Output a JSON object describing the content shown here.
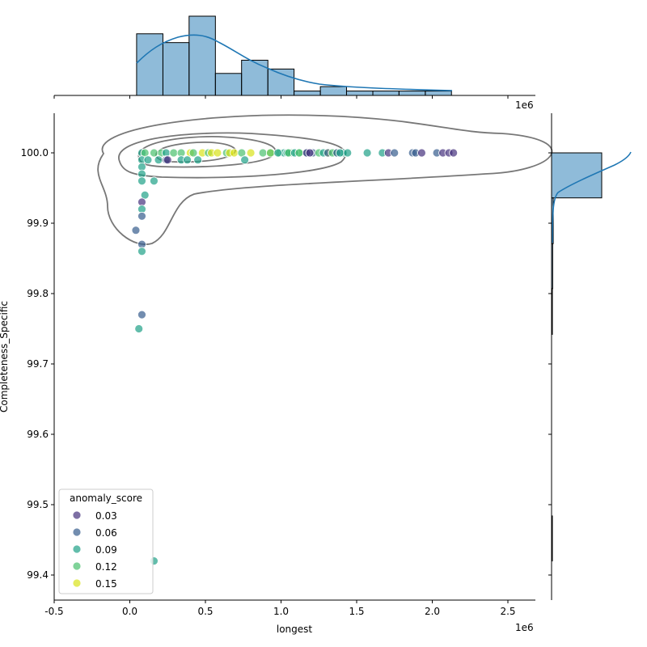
{
  "chart_data": {
    "type": "scatter",
    "subtype": "jointplot with kde contours and marginal histograms",
    "xlabel": "longest",
    "ylabel": "Completeness_Specific",
    "x_offset_label": "1e6",
    "xlim": [
      -0.5,
      2.68
    ],
    "ylim": [
      99.364,
      100.056
    ],
    "x_ticks": [
      "-0.5",
      "0.0",
      "0.5",
      "1.0",
      "1.5",
      "2.0",
      "2.5"
    ],
    "x_tick_values": [
      -0.5,
      0.0,
      0.5,
      1.0,
      1.5,
      2.0,
      2.5
    ],
    "y_ticks": [
      "99.4",
      "99.5",
      "99.6",
      "99.7",
      "99.8",
      "99.9",
      "100.0"
    ],
    "y_tick_values": [
      99.4,
      99.5,
      99.6,
      99.7,
      99.8,
      99.9,
      100.0
    ],
    "grid": false,
    "legend": {
      "title": "anomaly_score",
      "placement": "lower-left",
      "entries": [
        {
          "label": "0.03",
          "color": "#46327e"
        },
        {
          "label": "0.06",
          "color": "#365c8d"
        },
        {
          "label": "0.09",
          "color": "#1fa187"
        },
        {
          "label": "0.12",
          "color": "#4ac16d"
        },
        {
          "label": "0.15",
          "color": "#d8e219"
        }
      ]
    },
    "points": [
      [
        0.08,
        100.0,
        0.09
      ],
      [
        0.1,
        100.0,
        0.12
      ],
      [
        0.16,
        100.0,
        0.12
      ],
      [
        0.21,
        100.0,
        0.12
      ],
      [
        0.24,
        100.0,
        0.09
      ],
      [
        0.29,
        100.0,
        0.12
      ],
      [
        0.34,
        100.0,
        0.12
      ],
      [
        0.4,
        100.0,
        0.15
      ],
      [
        0.42,
        100.0,
        0.12
      ],
      [
        0.48,
        100.0,
        0.15
      ],
      [
        0.52,
        100.0,
        0.12
      ],
      [
        0.54,
        100.0,
        0.15
      ],
      [
        0.58,
        100.0,
        0.15
      ],
      [
        0.64,
        100.0,
        0.12
      ],
      [
        0.66,
        100.0,
        0.15
      ],
      [
        0.69,
        100.0,
        0.15
      ],
      [
        0.74,
        100.0,
        0.12
      ],
      [
        0.8,
        100.0,
        0.15
      ],
      [
        0.88,
        100.0,
        0.12
      ],
      [
        0.93,
        100.0,
        0.15
      ],
      [
        0.99,
        100.0,
        0.12
      ],
      [
        1.02,
        100.0,
        0.09
      ],
      [
        1.07,
        100.0,
        0.12
      ],
      [
        1.12,
        100.0,
        0.12
      ],
      [
        1.17,
        100.0,
        0.09
      ],
      [
        1.21,
        100.0,
        0.06
      ],
      [
        1.25,
        100.0,
        0.12
      ],
      [
        1.31,
        100.0,
        0.15
      ],
      [
        1.36,
        100.0,
        0.12
      ],
      [
        1.41,
        100.0,
        0.09
      ],
      [
        0.93,
        100.0,
        0.12
      ],
      [
        0.98,
        100.0,
        0.09
      ],
      [
        1.04,
        100.0,
        0.09
      ],
      [
        1.05,
        100.0,
        0.12
      ],
      [
        1.09,
        100.0,
        0.09
      ],
      [
        1.12,
        100.0,
        0.12
      ],
      [
        1.17,
        100.0,
        0.03
      ],
      [
        1.19,
        100.0,
        0.03
      ],
      [
        1.28,
        100.0,
        0.09
      ],
      [
        1.31,
        100.0,
        0.06
      ],
      [
        1.34,
        100.0,
        0.12
      ],
      [
        1.37,
        100.0,
        0.06
      ],
      [
        1.39,
        100.0,
        0.09
      ],
      [
        1.44,
        100.0,
        0.09
      ],
      [
        1.57,
        100.0,
        0.09
      ],
      [
        1.67,
        100.0,
        0.09
      ],
      [
        1.71,
        100.0,
        0.03
      ],
      [
        1.75,
        100.0,
        0.06
      ],
      [
        1.87,
        100.0,
        0.06
      ],
      [
        1.89,
        100.0,
        0.06
      ],
      [
        1.93,
        100.0,
        0.03
      ],
      [
        2.03,
        100.0,
        0.06
      ],
      [
        2.07,
        100.0,
        0.03
      ],
      [
        2.11,
        100.0,
        0.03
      ],
      [
        2.14,
        100.0,
        0.03
      ],
      [
        0.08,
        99.99,
        0.09
      ],
      [
        0.12,
        99.99,
        0.09
      ],
      [
        0.19,
        99.99,
        0.09
      ],
      [
        0.24,
        99.99,
        0.06
      ],
      [
        0.25,
        99.99,
        0.03
      ],
      [
        0.34,
        99.99,
        0.09
      ],
      [
        0.38,
        99.99,
        0.09
      ],
      [
        0.45,
        99.99,
        0.09
      ],
      [
        0.76,
        99.99,
        0.09
      ],
      [
        0.08,
        99.98,
        0.09
      ],
      [
        0.08,
        99.97,
        0.09
      ],
      [
        0.08,
        99.96,
        0.09
      ],
      [
        0.16,
        99.96,
        0.09
      ],
      [
        0.1,
        99.94,
        0.09
      ],
      [
        0.08,
        99.93,
        0.03
      ],
      [
        0.08,
        99.92,
        0.09
      ],
      [
        0.08,
        99.91,
        0.06
      ],
      [
        0.04,
        99.89,
        0.06
      ],
      [
        0.08,
        99.87,
        0.06
      ],
      [
        0.08,
        99.86,
        0.09
      ],
      [
        0.08,
        99.77,
        0.06
      ],
      [
        0.06,
        99.75,
        0.09
      ],
      [
        0.16,
        99.42,
        0.09
      ]
    ],
    "marginal_x_histogram": {
      "bin_edges": [
        0.045,
        0.219,
        0.392,
        0.566,
        0.739,
        0.913,
        1.086,
        1.26,
        1.433,
        1.607,
        1.78,
        1.954,
        2.127
      ],
      "counts": [
        14,
        12,
        18,
        5,
        8,
        6,
        1,
        2,
        1,
        1,
        1,
        1
      ],
      "color": "#1f77b4"
    },
    "marginal_y_histogram": {
      "bin_edges": [
        99.42,
        99.484,
        99.549,
        99.613,
        99.678,
        99.742,
        99.807,
        99.871,
        99.936,
        100.0
      ],
      "counts": [
        1,
        0,
        0,
        0,
        0,
        1,
        2,
        3,
        90
      ],
      "color": "#1f77b4"
    }
  }
}
